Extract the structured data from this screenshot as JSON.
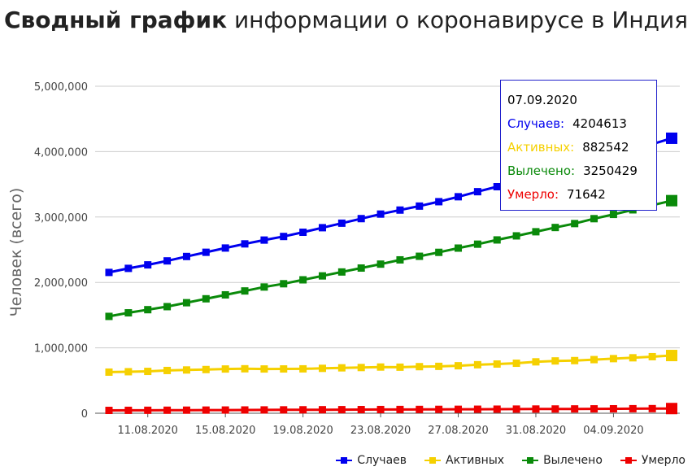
{
  "title": {
    "bold": "Сводный график",
    "rest": " информации о коронавирусе в Индия"
  },
  "chart_data": {
    "type": "line",
    "title": "Сводный график информации о коронавирусе в Индия",
    "ylabel": "Человек (всего)",
    "xlabel": "",
    "ylim": [
      0,
      5000000
    ],
    "yticks": [
      "0",
      "1,000,000",
      "2,000,000",
      "3,000,000",
      "4,000,000",
      "5,000,000"
    ],
    "xtick_labels": [
      "11.08.2020",
      "15.08.2020",
      "19.08.2020",
      "23.08.2020",
      "27.08.2020",
      "31.08.2020",
      "04.09.2020"
    ],
    "xtick_index": [
      2,
      6,
      10,
      14,
      18,
      22,
      26
    ],
    "grid": true,
    "legend_position": "bottom-right",
    "x": [
      "09.08.2020",
      "10.08.2020",
      "11.08.2020",
      "12.08.2020",
      "13.08.2020",
      "14.08.2020",
      "15.08.2020",
      "16.08.2020",
      "17.08.2020",
      "18.08.2020",
      "19.08.2020",
      "20.08.2020",
      "21.08.2020",
      "22.08.2020",
      "23.08.2020",
      "24.08.2020",
      "25.08.2020",
      "26.08.2020",
      "27.08.2020",
      "28.08.2020",
      "29.08.2020",
      "30.08.2020",
      "31.08.2020",
      "01.09.2020",
      "02.09.2020",
      "03.09.2020",
      "04.09.2020",
      "05.09.2020",
      "06.09.2020",
      "07.09.2020"
    ],
    "series": [
      {
        "name": "Случаев",
        "color": "#0000ee",
        "values": [
          2153010,
          2215074,
          2268675,
          2329638,
          2396637,
          2461190,
          2526192,
          2589682,
          2647663,
          2702742,
          2767273,
          2836925,
          2905823,
          2975701,
          3044940,
          3106348,
          3167323,
          3234474,
          3310234,
          3387500,
          3463972,
          3542733,
          3621245,
          3691166,
          3769523,
          3853406,
          3936747,
          4023179,
          4113811,
          4204613
        ]
      },
      {
        "name": "Активных",
        "color": "#f5d000",
        "values": [
          628747,
          634945,
          639929,
          653622,
          661595,
          668220,
          676514,
          679985,
          676900,
          677444,
          678720,
          686395,
          694315,
          698917,
          706376,
          704348,
          712304,
          716719,
          725991,
          741624,
          752424,
          764500,
          785996,
          800000,
          805000,
          820000,
          835000,
          848000,
          865000,
          882542
        ]
      },
      {
        "name": "Вылечено",
        "color": "#0a8a0a",
        "values": [
          1480884,
          1535743,
          1583489,
          1630000,
          1690000,
          1750000,
          1810000,
          1870000,
          1930000,
          1980000,
          2040000,
          2100000,
          2160000,
          2220000,
          2280000,
          2345000,
          2400000,
          2460000,
          2525000,
          2585000,
          2650000,
          2712000,
          2775000,
          2840000,
          2900000,
          2975000,
          3040000,
          3110000,
          3180000,
          3250429
        ]
      },
      {
        "name": "Умерло",
        "color": "#ee0000",
        "values": [
          43379,
          44386,
          45257,
          46091,
          47033,
          48040,
          49036,
          49980,
          50921,
          51797,
          52889,
          53866,
          54849,
          55794,
          56706,
          57542,
          58390,
          59449,
          60472,
          61529,
          62550,
          63498,
          64469,
          65288,
          66333,
          67376,
          68472,
          69561,
          70626,
          71642
        ]
      }
    ]
  },
  "tooltip": {
    "date": "07.09.2020",
    "rows": [
      {
        "label": "Случаев:",
        "value": "4204613",
        "color": "#0000ee"
      },
      {
        "label": "Активных:",
        "value": "882542",
        "color": "#f5d000"
      },
      {
        "label": "Вылечено:",
        "value": "3250429",
        "color": "#0a8a0a"
      },
      {
        "label": "Умерло:",
        "value": "71642",
        "color": "#ee0000"
      }
    ]
  }
}
